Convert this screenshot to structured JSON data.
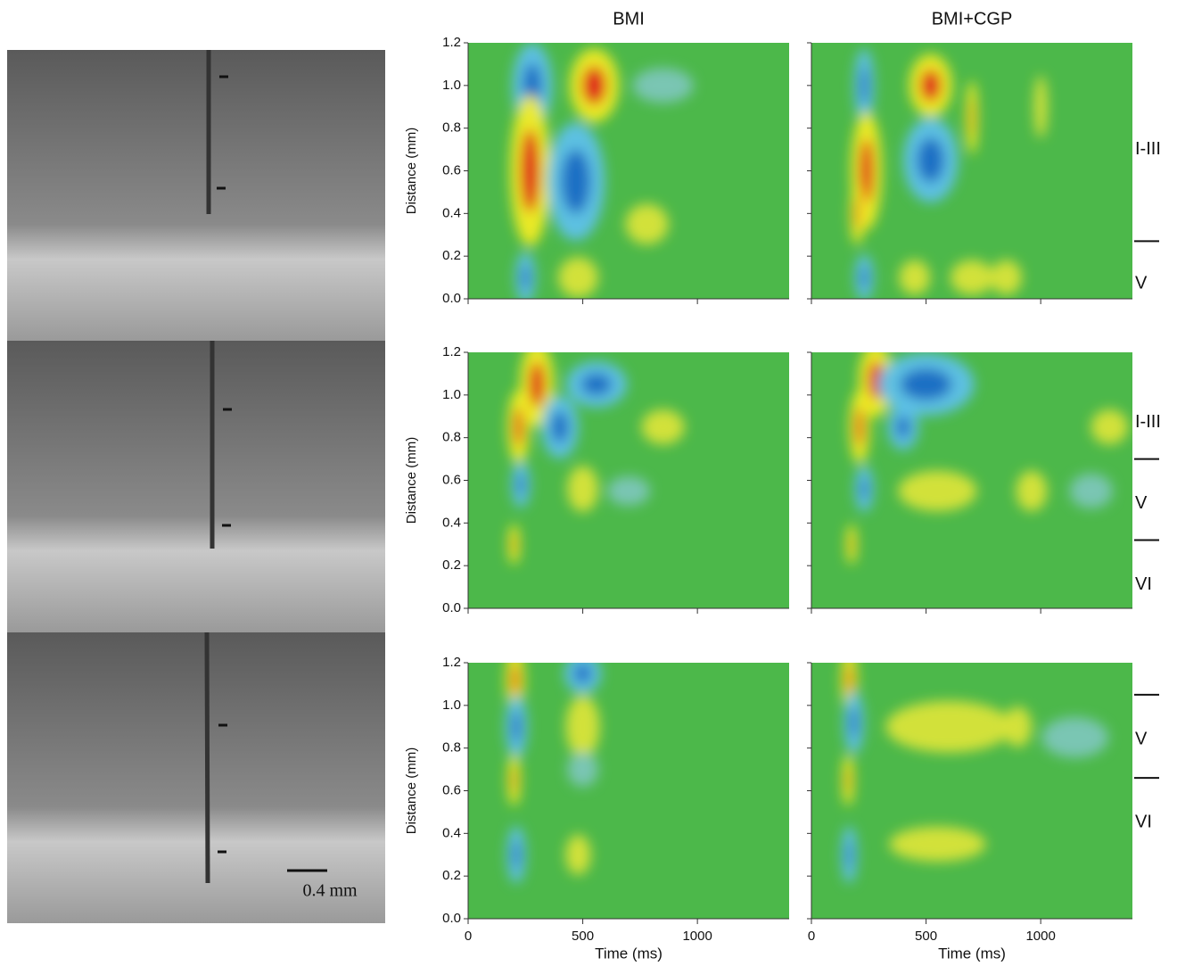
{
  "image": {
    "scale_bar": "0.4 mm"
  },
  "layers": [
    [
      "I-III",
      "V"
    ],
    [
      "I-III",
      "V",
      "VI"
    ],
    [
      "V",
      "VI"
    ]
  ],
  "chart_data": [
    {
      "type": "heatmap",
      "title": "BMI",
      "ylabel": "Distance (mm)",
      "xlim": [
        0,
        1400
      ],
      "xticks": [
        0,
        500,
        1000
      ],
      "ylim": [
        0,
        1.2
      ],
      "yticks": [
        {
          "value": 0,
          "label": "0.0"
        },
        0.2,
        0.4,
        0.6,
        0.8,
        {
          "value": 1,
          "label": "1.0"
        },
        1.2
      ]
    },
    {
      "type": "heatmap",
      "title": "BMI+CGP",
      "xlim": [
        0,
        1400
      ],
      "xticks": [
        0,
        500,
        1000
      ],
      "ylim": [
        0,
        1.2
      ],
      "yticks": [
        0,
        0.2,
        0.4,
        0.6,
        0.8,
        1,
        1.2
      ]
    },
    {
      "type": "heatmap",
      "ylabel": "Distance (mm)",
      "xlim": [
        0,
        1400
      ],
      "xticks": [
        0,
        500,
        1000
      ],
      "ylim": [
        0,
        1.2
      ],
      "yticks": [
        {
          "value": 0,
          "label": "0.0"
        },
        0.2,
        0.4,
        0.6,
        0.8,
        {
          "value": 1,
          "label": "1.0"
        },
        1.2
      ]
    },
    {
      "type": "heatmap",
      "xlim": [
        0,
        1400
      ],
      "xticks": [
        0,
        500,
        1000
      ],
      "ylim": [
        0,
        1.2
      ],
      "yticks": [
        0,
        0.2,
        0.4,
        0.6,
        0.8,
        1,
        1.2
      ]
    },
    {
      "type": "heatmap",
      "ylabel": "Distance (mm)",
      "xlabel": "Time (ms)",
      "xlim": [
        0,
        1400
      ],
      "xticks": [
        0,
        500,
        1000
      ],
      "ylim": [
        0,
        1.2
      ],
      "yticks": [
        {
          "value": 0,
          "label": "0.0"
        },
        0.2,
        0.4,
        0.6,
        0.8,
        {
          "value": 1,
          "label": "1.0"
        },
        1.2
      ]
    },
    {
      "type": "heatmap",
      "xlabel": "Time (ms)",
      "xlim": [
        0,
        1400
      ],
      "xticks": [
        0,
        500,
        1000
      ],
      "ylim": [
        0,
        1.2
      ],
      "yticks": [
        0,
        0.2,
        0.4,
        0.6,
        0.8,
        1,
        1.2
      ]
    }
  ]
}
